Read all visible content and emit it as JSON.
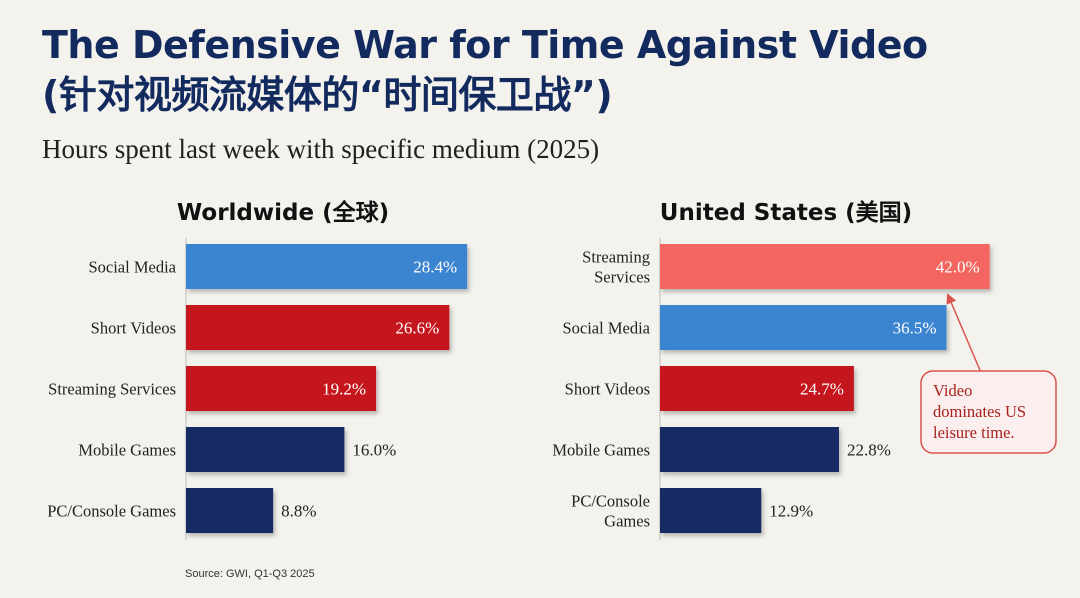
{
  "header": {
    "title_line1": "The Defensive War for Time Against Video",
    "title_line2": "(针对视频流媒体的“时间保卫战”)",
    "subtitle": "Hours spent last week with specific medium (2025)"
  },
  "colors": {
    "social": "#3a84cf",
    "video": "#c4161c",
    "streaming_us": "#f2665e",
    "games": "#142b63",
    "callout": "#d9534f"
  },
  "chart_data": [
    {
      "type": "bar",
      "orientation": "horizontal",
      "title": "Worldwide (全球)",
      "unit": "%",
      "categories": [
        "Social Media",
        "Short Videos",
        "Streaming Services",
        "Mobile Games",
        "PC/Console Games"
      ],
      "values": [
        28.4,
        26.6,
        19.2,
        16.0,
        8.8
      ],
      "value_labels": [
        "28.4%",
        "26.6%",
        "19.2%",
        "16.0%",
        "8.8%"
      ],
      "series_colors": [
        "social",
        "video",
        "video",
        "games",
        "games"
      ]
    },
    {
      "type": "bar",
      "orientation": "horizontal",
      "title": "United States (美国)",
      "unit": "%",
      "categories": [
        "Streaming Services",
        "Social Media",
        "Short Videos",
        "Mobile Games",
        "PC/Console Games"
      ],
      "values": [
        42.0,
        36.5,
        24.7,
        22.8,
        12.9
      ],
      "value_labels": [
        "42.0%",
        "36.5%",
        "24.7%",
        "22.8%",
        "12.9%"
      ],
      "series_colors": [
        "streaming_us",
        "social",
        "video",
        "games",
        "games"
      ],
      "annotation": {
        "text": "Video dominates US leisure time.",
        "target_category": "Streaming Services"
      }
    }
  ],
  "source": "Source: GWI, Q1-Q3 2025"
}
